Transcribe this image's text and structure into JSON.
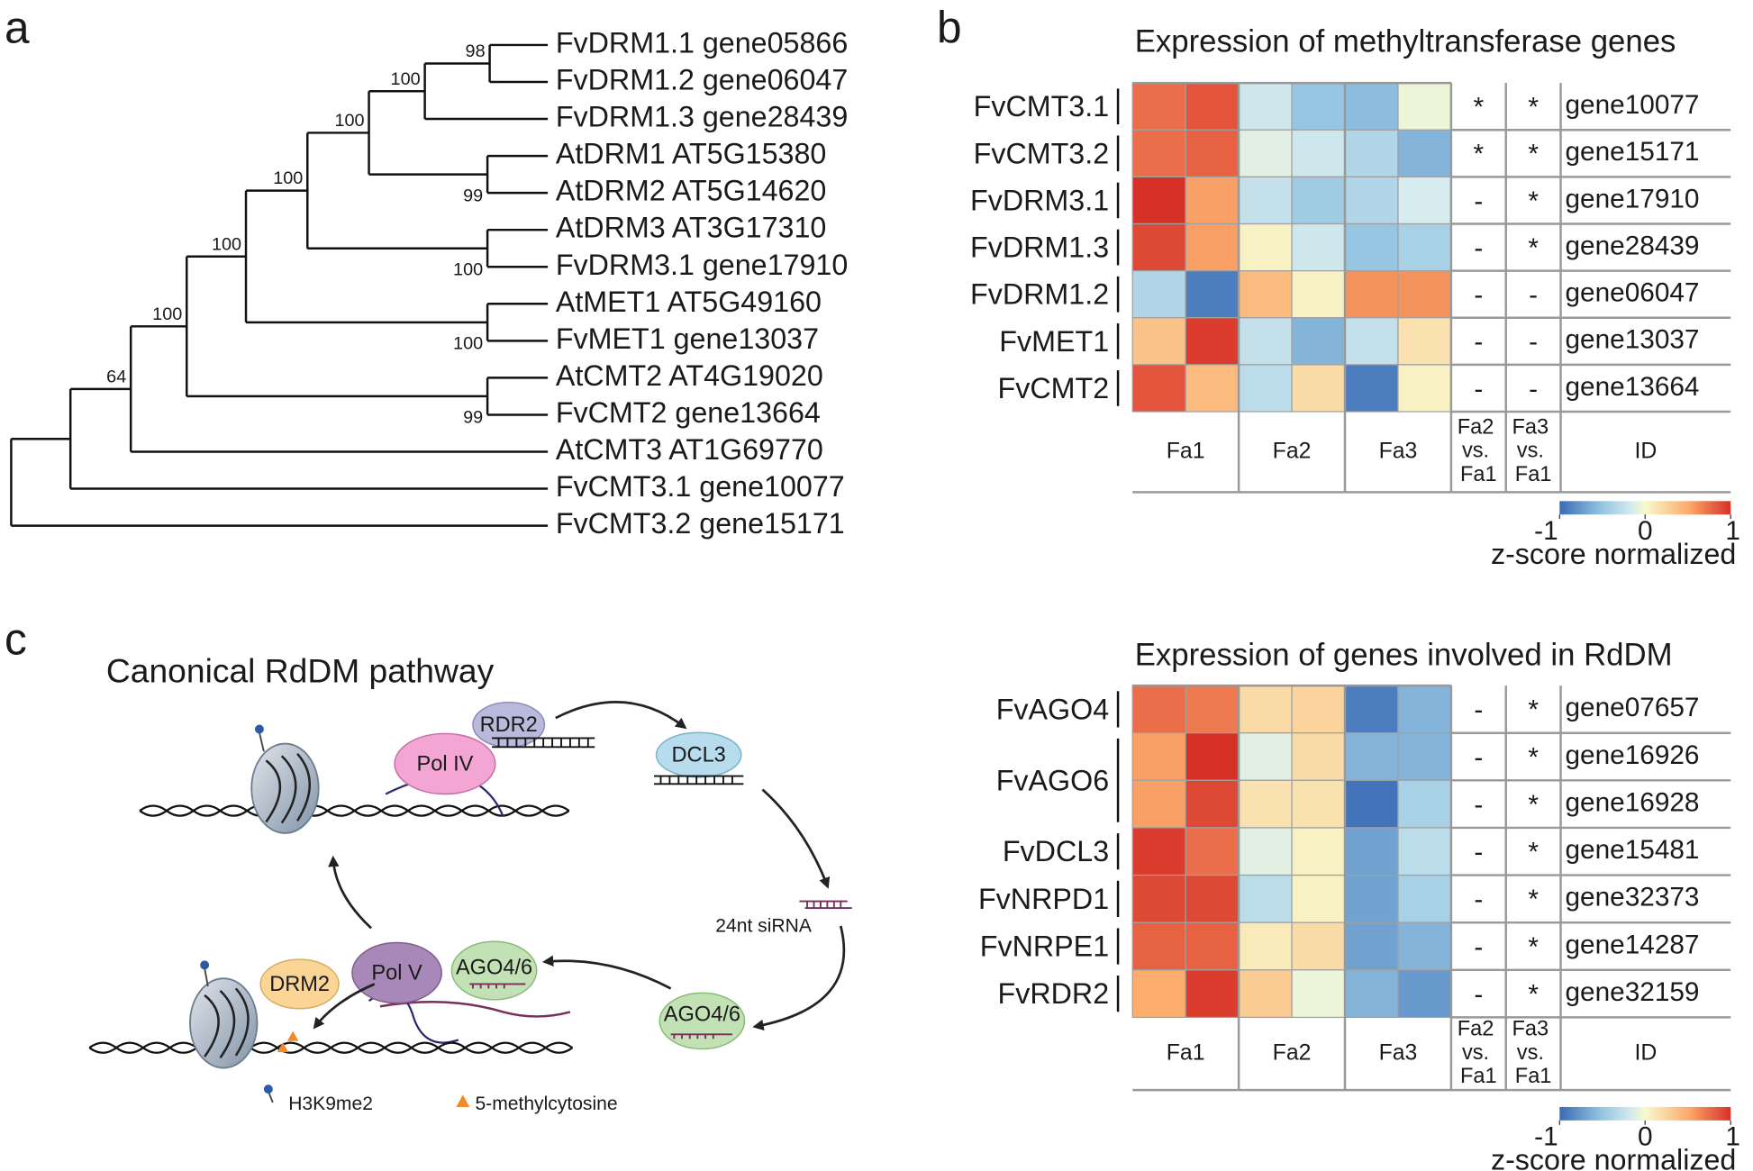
{
  "panel_labels": [
    "a",
    "b",
    "c"
  ],
  "tree": {
    "leaves": [
      "FvDRM1.1 gene05866",
      "FvDRM1.2 gene06047",
      "FvDRM1.3 gene28439",
      "AtDRM1 AT5G15380",
      "AtDRM2 AT5G14620",
      "AtDRM3 AT3G17310",
      "FvDRM3.1 gene17910",
      "AtMET1 AT5G49160",
      "FvMET1 gene13037",
      "AtCMT2 AT4G19020",
      "FvCMT2 gene13664",
      "AtCMT3 AT1G69770",
      "FvCMT3.1 gene10077",
      "FvCMT3.2 gene15171"
    ],
    "bootstrap": [
      98,
      100,
      99,
      100,
      100,
      100,
      100,
      100,
      99,
      100,
      64
    ]
  },
  "heatmaps": [
    {
      "title": "Expression of methyltransferase genes",
      "groups": [
        {
          "label": "FvCMT3.1",
          "span": 1
        },
        {
          "label": "FvCMT3.2",
          "span": 1
        },
        {
          "label": "FvDRM3.1",
          "span": 1
        },
        {
          "label": "FvDRM1.3",
          "span": 1
        },
        {
          "label": "FvDRM1.2",
          "span": 1
        },
        {
          "label": "FvMET1",
          "span": 1
        },
        {
          "label": "FvCMT2",
          "span": 1
        }
      ],
      "rows": [
        {
          "id": "gene10077",
          "values": [
            0.75,
            0.85,
            -0.2,
            -0.5,
            -0.55,
            -0.05
          ],
          "sig": [
            "*",
            "*"
          ]
        },
        {
          "id": "gene15171",
          "values": [
            0.75,
            0.8,
            -0.1,
            -0.2,
            -0.35,
            -0.6
          ],
          "sig": [
            "*",
            "*"
          ]
        },
        {
          "id": "gene17910",
          "values": [
            1,
            0.55,
            -0.25,
            -0.45,
            -0.35,
            -0.15
          ],
          "sig": [
            "-",
            "*"
          ]
        },
        {
          "id": "gene28439",
          "values": [
            0.9,
            0.55,
            0.05,
            -0.2,
            -0.5,
            -0.4
          ],
          "sig": [
            "-",
            "*"
          ]
        },
        {
          "id": "gene06047",
          "values": [
            -0.35,
            -0.9,
            0.4,
            0.05,
            0.6,
            0.6
          ],
          "sig": [
            "-",
            "-"
          ]
        },
        {
          "id": "gene13037",
          "values": [
            0.35,
            0.95,
            -0.25,
            -0.6,
            -0.25,
            0.15
          ],
          "sig": [
            "-",
            "-"
          ]
        },
        {
          "id": "gene13664",
          "values": [
            0.85,
            0.4,
            -0.3,
            0.2,
            -0.9,
            0.05
          ],
          "sig": [
            "-",
            "-"
          ]
        }
      ],
      "columns": [
        "Fa1",
        "Fa2",
        "Fa3",
        "Fa2 vs. Fa1",
        "Fa3 vs. Fa1",
        "ID"
      ],
      "clim": [
        -1,
        1
      ],
      "colorbar_ticks": [
        -1,
        0,
        1
      ],
      "colorbar_label": "z-score normalized"
    },
    {
      "title": "Expression of genes involved in RdDM",
      "groups": [
        {
          "label": "FvAGO4",
          "span": 1
        },
        {
          "label": "FvAGO6",
          "span": 2
        },
        {
          "label": "FvDCL3",
          "span": 1
        },
        {
          "label": "FvNRPD1",
          "span": 1
        },
        {
          "label": "FvNRPE1",
          "span": 1
        },
        {
          "label": "FvRDR2",
          "span": 1
        }
      ],
      "rows": [
        {
          "id": "gene07657",
          "values": [
            0.75,
            0.7,
            0.2,
            0.25,
            -0.9,
            -0.6
          ],
          "sig": [
            "-",
            "*"
          ]
        },
        {
          "id": "gene16926",
          "values": [
            0.55,
            1,
            -0.1,
            0.2,
            -0.6,
            -0.6
          ],
          "sig": [
            "-",
            "*"
          ]
        },
        {
          "id": "gene16928",
          "values": [
            0.55,
            0.9,
            0.15,
            0.15,
            -0.95,
            -0.4
          ],
          "sig": [
            "-",
            "*"
          ]
        },
        {
          "id": "gene15481",
          "values": [
            0.95,
            0.75,
            -0.1,
            0.05,
            -0.7,
            -0.3
          ],
          "sig": [
            "-",
            "*"
          ]
        },
        {
          "id": "gene32373",
          "values": [
            0.9,
            0.9,
            -0.3,
            0.05,
            -0.7,
            -0.4
          ],
          "sig": [
            "-",
            "*"
          ]
        },
        {
          "id": "gene14287",
          "values": [
            0.8,
            0.8,
            0.1,
            0.2,
            -0.7,
            -0.6
          ],
          "sig": [
            "-",
            "*"
          ]
        },
        {
          "id": "gene32159",
          "values": [
            0.5,
            0.95,
            0.3,
            -0.05,
            -0.6,
            -0.75
          ],
          "sig": [
            "-",
            "*"
          ]
        }
      ],
      "columns": [
        "Fa1",
        "Fa2",
        "Fa3",
        "Fa2 vs. Fa1",
        "Fa3 vs. Fa1",
        "ID"
      ],
      "clim": [
        -1,
        1
      ],
      "colorbar_ticks": [
        -1,
        0,
        1
      ],
      "colorbar_label": "z-score normalized"
    }
  ],
  "diagram": {
    "title": "Canonical RdDM pathway",
    "rdr2": "RDR2",
    "pol_iv": "Pol IV",
    "dcl3": "DCL3",
    "sirna": "24nt siRNA",
    "ago46_free": "AGO4/6",
    "ago46_bound": "AGO4/6",
    "pol_v": "Pol V",
    "drm2": "DRM2",
    "legend_h3k9": "H3K9me2",
    "legend_5mc": "5-methylcytosine"
  }
}
